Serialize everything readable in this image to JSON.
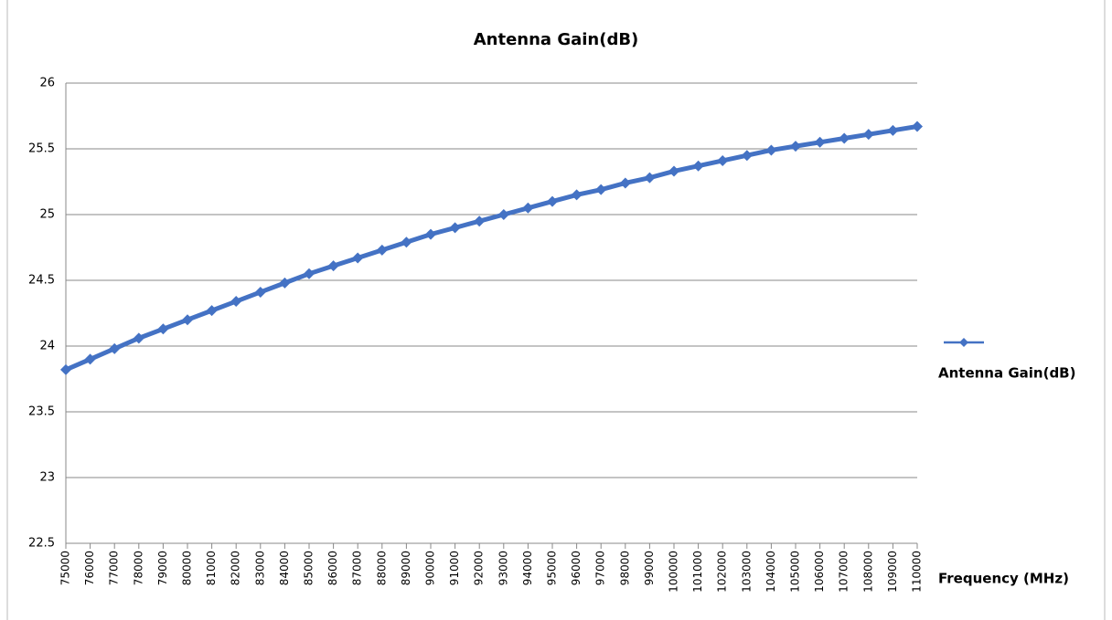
{
  "chart_data": {
    "type": "line",
    "title": "Antenna Gain(dB)",
    "x_label": "Frequency (MHz)",
    "x": [
      75000,
      76000,
      77000,
      78000,
      79000,
      80000,
      81000,
      82000,
      83000,
      84000,
      85000,
      86000,
      87000,
      88000,
      89000,
      90000,
      91000,
      92000,
      93000,
      94000,
      95000,
      96000,
      97000,
      98000,
      99000,
      100000,
      101000,
      102000,
      103000,
      104000,
      105000,
      106000,
      107000,
      108000,
      109000,
      110000
    ],
    "series": [
      {
        "name": "Antenna Gain(dB)",
        "color": "#4472c4",
        "values": [
          23.82,
          23.9,
          23.98,
          24.06,
          24.13,
          24.2,
          24.27,
          24.34,
          24.41,
          24.48,
          24.55,
          24.61,
          24.67,
          24.73,
          24.79,
          24.85,
          24.9,
          24.95,
          25.0,
          25.05,
          25.1,
          25.15,
          25.19,
          25.24,
          25.28,
          25.33,
          25.37,
          25.41,
          25.45,
          25.49,
          25.52,
          25.55,
          25.58,
          25.61,
          25.64,
          25.67
        ]
      }
    ],
    "xlim": [
      75000,
      110000
    ],
    "xticks": [
      75000,
      76000,
      77000,
      78000,
      79000,
      80000,
      81000,
      82000,
      83000,
      84000,
      85000,
      86000,
      87000,
      88000,
      89000,
      90000,
      91000,
      92000,
      93000,
      94000,
      95000,
      96000,
      97000,
      98000,
      99000,
      100000,
      101000,
      102000,
      103000,
      104000,
      105000,
      106000,
      107000,
      108000,
      109000,
      110000
    ],
    "ylim": [
      22.5,
      26
    ],
    "yticks": [
      22.5,
      23,
      23.5,
      24,
      24.5,
      25,
      25.5,
      26
    ],
    "grid": true,
    "legend": "right"
  }
}
